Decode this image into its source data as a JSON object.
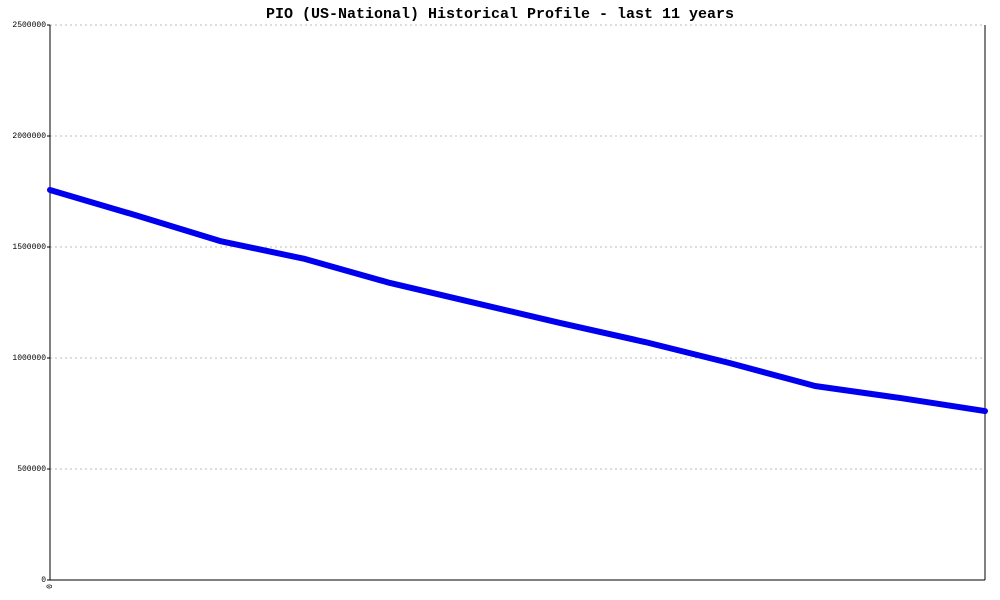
{
  "chart_data": {
    "type": "line",
    "title": "PIO (US-National) Historical Profile - last 11 years",
    "categories": [
      "0",
      null,
      null,
      null,
      null,
      null,
      null,
      null,
      null,
      null,
      null,
      null
    ],
    "series": [
      {
        "name": "PIO",
        "color": "#0000ee",
        "values": [
          1757000,
          1644000,
          1527000,
          1446000,
          1338000,
          1248000,
          1158000,
          1072000,
          977000,
          874000,
          820000,
          761000
        ]
      }
    ],
    "ylim": [
      0,
      2500000
    ],
    "yticks": [
      0,
      500000,
      1000000,
      1500000,
      2000000,
      2500000
    ],
    "grid": true
  }
}
